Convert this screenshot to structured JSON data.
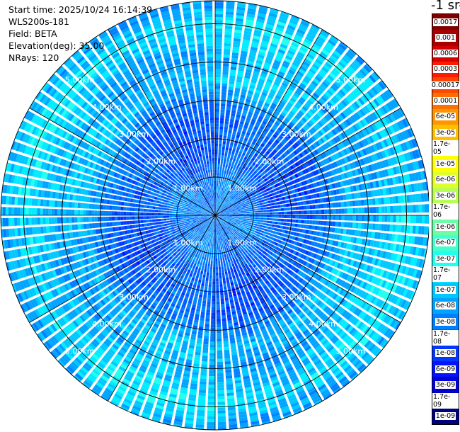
{
  "header": {
    "start_time": "Start time: 2025/10/24 16:14:39",
    "site": "WLS200s-181",
    "field": "Field: BETA",
    "elevation": "Elevation(deg): 35.00",
    "nrays": "NRays: 120"
  },
  "colorbar": {
    "title": "-1 sr-",
    "labels": [
      "0.0017",
      "0.001",
      "0.0006",
      "0.0003",
      "0.00017",
      "0.0001",
      "6e-05",
      "3e-05",
      "1.7e-05",
      "1e-05",
      "6e-06",
      "3e-06",
      "1.7e-06",
      "1e-06",
      "6e-07",
      "3e-07",
      "1.7e-07",
      "1e-07",
      "6e-08",
      "3e-08",
      "1.7e-08",
      "1e-08",
      "6e-09",
      "3e-09",
      "1.7e-09",
      "1e-09"
    ],
    "colors": [
      "#800000",
      "#a80000",
      "#d40000",
      "#ff1a00",
      "#ff4500",
      "#ff6e00",
      "#ff9600",
      "#ffbe00",
      "#ffe000",
      "#ffff00",
      "#e0ff2a",
      "#b8ff55",
      "#90ff7d",
      "#6affa5",
      "#45ffcd",
      "#22ffee",
      "#00ecff",
      "#00c8ff",
      "#00a4ff",
      "#0080ff",
      "#005cff",
      "#0038ff",
      "#0014ff",
      "#0000d8",
      "#0000a8",
      "#00007c"
    ]
  },
  "chart_data": {
    "type": "heatmap",
    "projection": "polar PPI scan",
    "field": "BETA",
    "elevation_deg": 35.0,
    "nrays": 120,
    "range_rings_km": [
      1.0,
      2.0,
      3.0,
      4.0,
      5.0
    ],
    "range_labels": [
      "1.00km",
      "2.00km",
      "3.00km",
      "4.00km",
      "5.00km"
    ],
    "max_range_km": 5.6,
    "value_profile": [
      {
        "range_km": 0.5,
        "beta": 3e-08
      },
      {
        "range_km": 1.0,
        "beta": 3e-08
      },
      {
        "range_km": 1.5,
        "beta": 1.7e-08
      },
      {
        "range_km": 2.0,
        "beta": 1.7e-08
      },
      {
        "range_km": 2.5,
        "beta": 1.7e-08
      },
      {
        "range_km": 3.0,
        "beta": 3e-08
      },
      {
        "range_km": 3.5,
        "beta": 1e-07
      },
      {
        "range_km": 4.0,
        "beta": 6e-08
      },
      {
        "range_km": 4.5,
        "beta": 1e-07
      },
      {
        "range_km": 5.0,
        "beta": 1.7e-07
      },
      {
        "range_km": 5.5,
        "beta": 6e-08
      }
    ]
  }
}
